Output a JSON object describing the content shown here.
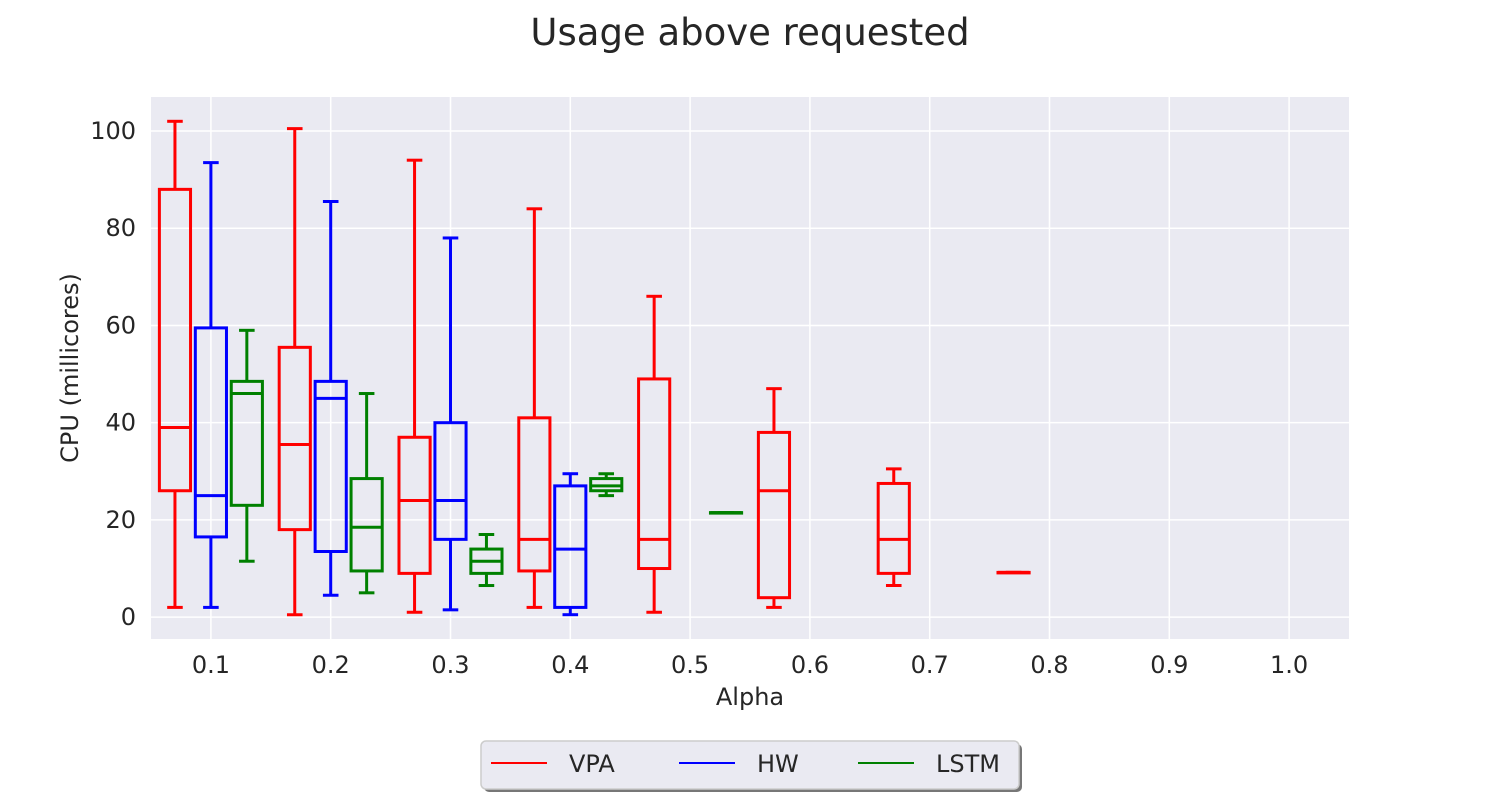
{
  "chart_data": {
    "type": "box",
    "title": "Usage above requested",
    "xlabel": "Alpha",
    "ylabel": "CPU (millicores)",
    "xlim": [
      0.05,
      1.05
    ],
    "ylim": [
      -4.5,
      107
    ],
    "x_ticks": [
      "0.1",
      "0.2",
      "0.3",
      "0.4",
      "0.5",
      "0.6",
      "0.7",
      "0.8",
      "0.9",
      "1.0"
    ],
    "y_ticks": [
      "0",
      "20",
      "40",
      "60",
      "80",
      "100"
    ],
    "grid": true,
    "legend_position": "bottom-center",
    "series": [
      {
        "name": "VPA",
        "color": "#ff0000",
        "boxes": [
          {
            "alpha": 0.1,
            "whisker_low": 2,
            "q1": 26,
            "median": 39,
            "q3": 88,
            "whisker_high": 102
          },
          {
            "alpha": 0.2,
            "whisker_low": 0.5,
            "q1": 18,
            "median": 35.5,
            "q3": 55.5,
            "whisker_high": 100.5
          },
          {
            "alpha": 0.3,
            "whisker_low": 1,
            "q1": 9,
            "median": 24,
            "q3": 37,
            "whisker_high": 94
          },
          {
            "alpha": 0.4,
            "whisker_low": 2,
            "q1": 9.5,
            "median": 16,
            "q3": 41,
            "whisker_high": 84
          },
          {
            "alpha": 0.5,
            "whisker_low": 1,
            "q1": 10,
            "median": 16,
            "q3": 49,
            "whisker_high": 66
          },
          {
            "alpha": 0.6,
            "whisker_low": 2,
            "q1": 4,
            "median": 26,
            "q3": 38,
            "whisker_high": 47
          },
          {
            "alpha": 0.7,
            "whisker_low": 6.5,
            "q1": 9,
            "median": 16,
            "q3": 27.5,
            "whisker_high": 30.5
          },
          {
            "alpha": 0.8,
            "whisker_low": 9.2,
            "q1": 9.2,
            "median": 9.2,
            "q3": 9.2,
            "whisker_high": 9.2
          }
        ]
      },
      {
        "name": "HW",
        "color": "#0000ff",
        "boxes": [
          {
            "alpha": 0.1,
            "whisker_low": 2,
            "q1": 16.5,
            "median": 25,
            "q3": 59.5,
            "whisker_high": 93.5
          },
          {
            "alpha": 0.2,
            "whisker_low": 4.5,
            "q1": 13.5,
            "median": 45,
            "q3": 48.5,
            "whisker_high": 85.5
          },
          {
            "alpha": 0.3,
            "whisker_low": 1.5,
            "q1": 16,
            "median": 24,
            "q3": 40,
            "whisker_high": 78
          },
          {
            "alpha": 0.4,
            "whisker_low": 0.5,
            "q1": 2,
            "median": 14,
            "q3": 27,
            "whisker_high": 29.5
          }
        ]
      },
      {
        "name": "LSTM",
        "color": "#008000",
        "boxes": [
          {
            "alpha": 0.1,
            "whisker_low": 11.5,
            "q1": 23,
            "median": 46,
            "q3": 48.5,
            "whisker_high": 59
          },
          {
            "alpha": 0.2,
            "whisker_low": 5,
            "q1": 9.5,
            "median": 18.5,
            "q3": 28.5,
            "whisker_high": 46
          },
          {
            "alpha": 0.3,
            "whisker_low": 6.5,
            "q1": 9,
            "median": 11.5,
            "q3": 14,
            "whisker_high": 17
          },
          {
            "alpha": 0.4,
            "whisker_low": 25,
            "q1": 26,
            "median": 27,
            "q3": 28.5,
            "whisker_high": 29.5
          },
          {
            "alpha": 0.5,
            "whisker_low": 21.5,
            "q1": 21.5,
            "median": 21.5,
            "q3": 21.5,
            "whisker_high": 21.5
          }
        ]
      }
    ]
  }
}
